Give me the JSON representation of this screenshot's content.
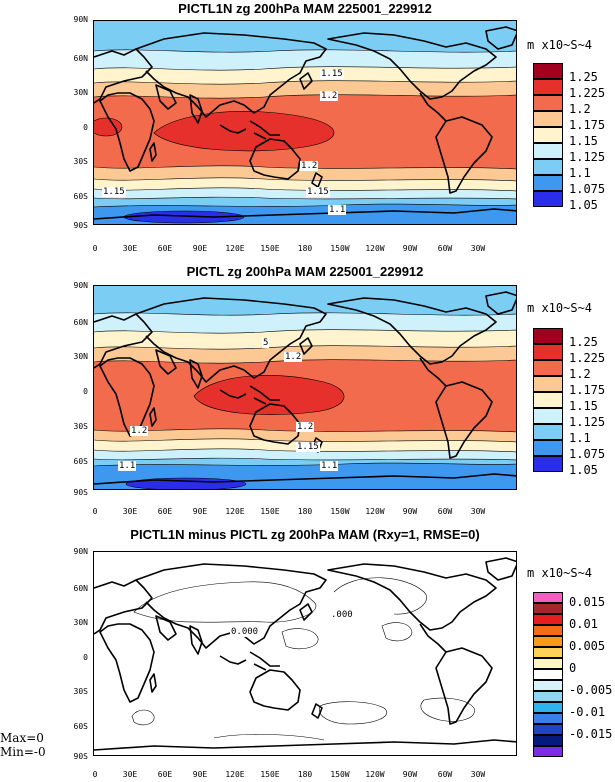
{
  "panels": [
    {
      "title": "PICTL1N zg 200hPa MAM 225001_229912",
      "units": "m x10~S~4",
      "legend": [
        {
          "label": "1.25",
          "color": "#a0001e"
        },
        {
          "label": "1.225",
          "color": "#e6302b"
        },
        {
          "label": "1.2",
          "color": "#f26b4c"
        },
        {
          "label": "1.175",
          "color": "#fcc994"
        },
        {
          "label": "1.15",
          "color": "#fff4cd"
        },
        {
          "label": "1.125",
          "color": "#cff1fb"
        },
        {
          "label": "1.1",
          "color": "#7ccdf4"
        },
        {
          "label": "1.075",
          "color": "#3f98f0"
        },
        {
          "label": "1.05",
          "color": "#2a2ee8"
        }
      ],
      "contour_labels": [
        "1.15",
        "1.2",
        "1.2",
        "1.15",
        "1.15",
        "1.1"
      ]
    },
    {
      "title": "PICTL zg 200hPa MAM 225001_229912",
      "units": "m x10~S~4",
      "legend": [
        {
          "label": "1.25",
          "color": "#a0001e"
        },
        {
          "label": "1.225",
          "color": "#e6302b"
        },
        {
          "label": "1.2",
          "color": "#f26b4c"
        },
        {
          "label": "1.175",
          "color": "#fcc994"
        },
        {
          "label": "1.15",
          "color": "#fff4cd"
        },
        {
          "label": "1.125",
          "color": "#cff1fb"
        },
        {
          "label": "1.1",
          "color": "#7ccdf4"
        },
        {
          "label": "1.075",
          "color": "#3f98f0"
        },
        {
          "label": "1.05",
          "color": "#2a2ee8"
        }
      ],
      "contour_labels": [
        "5",
        "1.2",
        "1.2",
        "1.2",
        "1.15",
        "1.1",
        "1.1"
      ]
    },
    {
      "title": "PICTL1N minus PICTL zg 200hPa MAM (Rxy=1, RMSE=0)",
      "units": "m x10~S~4",
      "legend": [
        {
          "label": "",
          "color": "#f25fc0"
        },
        {
          "label": "0.015",
          "color": "#a8252b"
        },
        {
          "label": "",
          "color": "#e81e1e"
        },
        {
          "label": "0.01",
          "color": "#f66a18"
        },
        {
          "label": "",
          "color": "#f99a1b"
        },
        {
          "label": "0.005",
          "color": "#fdd056"
        },
        {
          "label": "",
          "color": "#fdf6bf"
        },
        {
          "label": "0",
          "color": "#ffffff"
        },
        {
          "label": "",
          "color": "#d7f2fb"
        },
        {
          "label": "-0.005",
          "color": "#8fd6f4"
        },
        {
          "label": "",
          "color": "#2fb3ec"
        },
        {
          "label": "-0.01",
          "color": "#3b7fe8"
        },
        {
          "label": "",
          "color": "#2342c6"
        },
        {
          "label": "-0.015",
          "color": "#06197c"
        },
        {
          "label": "",
          "color": "#7a2de6"
        }
      ],
      "contour_labels": [
        "0.000",
        ".000"
      ],
      "stats": {
        "max": "Max=0",
        "min": "Min=-0"
      }
    }
  ],
  "lat_labels": [
    "90N",
    "60N",
    "30N",
    "0",
    "30S",
    "60S",
    "90S"
  ],
  "lon_labels": [
    "0",
    "30E",
    "60E",
    "90E",
    "120E",
    "150E",
    "180",
    "150W",
    "120W",
    "90W",
    "60W",
    "30W"
  ]
}
